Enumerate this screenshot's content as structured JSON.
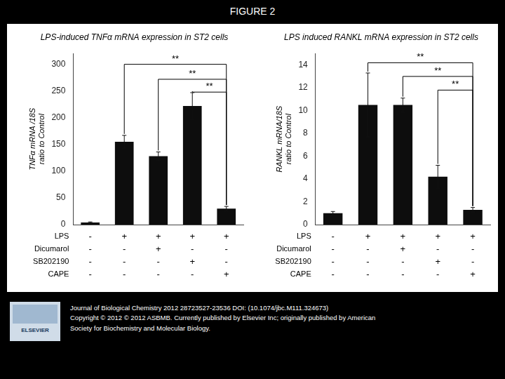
{
  "title": "FIGURE 2",
  "chart_data": [
    {
      "type": "bar",
      "title": "LPS-induced TNFα mRNA expression in ST2 cells",
      "ylabel": "TNFα mRNA /18S\nratio to Control",
      "categories": [
        null,
        null,
        null,
        null,
        null
      ],
      "values": [
        4,
        155,
        128,
        222,
        30
      ],
      "errors": [
        1,
        12,
        8,
        25,
        4
      ],
      "color": "#0d0d0d",
      "ylim": [
        0,
        320
      ],
      "yticks": [
        0,
        50,
        100,
        150,
        200,
        250,
        300
      ],
      "grid": false,
      "tick_labels": "y",
      "brackets": [
        {
          "from": 1,
          "to": 4,
          "y": 300,
          "label": "**"
        },
        {
          "from": 2,
          "to": 4,
          "y": 272,
          "label": "**"
        },
        {
          "from": 3,
          "to": 4,
          "y": 248,
          "label": "**"
        }
      ]
    },
    {
      "type": "bar",
      "title": "LPS induced RANKL mRNA expression in ST2 cells",
      "ylabel": "RANKL mRNA/18S\nratio to Control",
      "categories": [
        null,
        null,
        null,
        null,
        null
      ],
      "values": [
        1.0,
        10.5,
        10.5,
        4.2,
        1.3
      ],
      "errors": [
        0.15,
        2.8,
        0.6,
        1.0,
        0.2
      ],
      "color": "#0d0d0d",
      "ylim": [
        0,
        15
      ],
      "yticks": [
        0,
        2,
        4,
        6,
        8,
        10,
        12,
        14
      ],
      "grid": false,
      "tick_labels": "y",
      "brackets": [
        {
          "from": 1,
          "to": 4,
          "y": 14.2,
          "label": "**"
        },
        {
          "from": 2,
          "to": 4,
          "y": 13.0,
          "label": "**"
        },
        {
          "from": 3,
          "to": 4,
          "y": 11.8,
          "label": "**"
        }
      ]
    }
  ],
  "table": {
    "row_labels": [
      "LPS",
      "Dicumarol",
      "SB202190",
      "CAPE"
    ],
    "rows": [
      [
        "-",
        "+",
        "+",
        "+",
        "+"
      ],
      [
        "-",
        "-",
        "+",
        "-",
        "-"
      ],
      [
        "-",
        "-",
        "-",
        "+",
        "-"
      ],
      [
        "-",
        "-",
        "-",
        "-",
        "+"
      ]
    ]
  },
  "footer": "Journal of Biological Chemistry 2012 28723527-23536 DOI: (10.1074/jbc.M111.324673)\nCopyright © 2012 © 2012 ASBMB. Currently published by Elsevier Inc; originally published by American\nSociety for Biochemistry and Molecular Biology.",
  "logo_text": "ELSEVIER"
}
